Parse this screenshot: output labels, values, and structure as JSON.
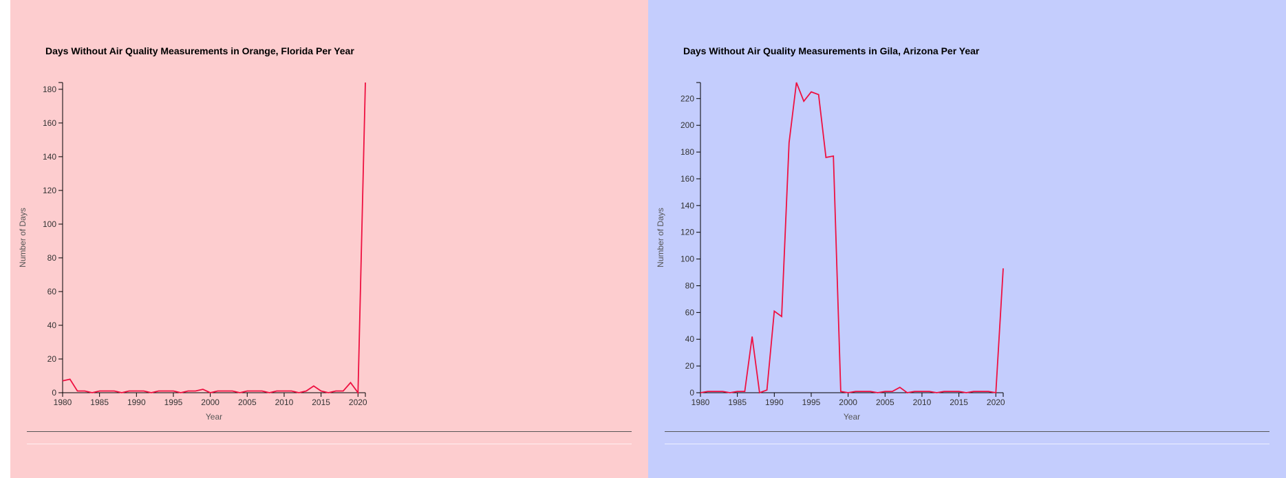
{
  "colors": {
    "left_bg": "#fdcdcf",
    "right_bg": "#c4cdfd",
    "line": "#ee1040",
    "axis": "#000000",
    "tick_text": "#333333",
    "label_text": "#555555"
  },
  "chart_data": [
    {
      "type": "line",
      "title": "Days Without Air Quality Measurements in Orange, Florida Per Year",
      "xlabel": "Year",
      "ylabel": "Number of Days",
      "xlim": [
        1980,
        2021
      ],
      "ylim": [
        0,
        184
      ],
      "xticks": [
        1980,
        1985,
        1990,
        1995,
        2000,
        2005,
        2010,
        2015,
        2020
      ],
      "yticks": [
        0,
        20,
        40,
        60,
        80,
        100,
        120,
        140,
        160,
        180
      ],
      "grid": false,
      "x": [
        1980,
        1981,
        1982,
        1983,
        1984,
        1985,
        1986,
        1987,
        1988,
        1989,
        1990,
        1991,
        1992,
        1993,
        1994,
        1995,
        1996,
        1997,
        1998,
        1999,
        2000,
        2001,
        2002,
        2003,
        2004,
        2005,
        2006,
        2007,
        2008,
        2009,
        2010,
        2011,
        2012,
        2013,
        2014,
        2015,
        2016,
        2017,
        2018,
        2019,
        2020,
        2021
      ],
      "y": [
        7,
        8,
        1,
        1,
        0,
        1,
        1,
        1,
        0,
        1,
        1,
        1,
        0,
        1,
        1,
        1,
        0,
        1,
        1,
        2,
        0,
        1,
        1,
        1,
        0,
        1,
        1,
        1,
        0,
        1,
        1,
        1,
        0,
        1,
        4,
        1,
        0,
        1,
        1,
        6,
        0,
        184
      ]
    },
    {
      "type": "line",
      "title": "Days Without Air Quality Measurements in Gila, Arizona Per Year",
      "xlabel": "Year",
      "ylabel": "Number of Days",
      "xlim": [
        1980,
        2021
      ],
      "ylim": [
        0,
        232
      ],
      "xticks": [
        1980,
        1985,
        1990,
        1995,
        2000,
        2005,
        2010,
        2015,
        2020
      ],
      "yticks": [
        0,
        20,
        40,
        60,
        80,
        100,
        120,
        140,
        160,
        180,
        200,
        220
      ],
      "grid": false,
      "x": [
        1980,
        1981,
        1982,
        1983,
        1984,
        1985,
        1986,
        1987,
        1988,
        1989,
        1990,
        1991,
        1992,
        1993,
        1994,
        1995,
        1996,
        1997,
        1998,
        1999,
        2000,
        2001,
        2002,
        2003,
        2004,
        2005,
        2006,
        2007,
        2008,
        2009,
        2010,
        2011,
        2012,
        2013,
        2014,
        2015,
        2016,
        2017,
        2018,
        2019,
        2020,
        2021
      ],
      "y": [
        0,
        1,
        1,
        1,
        0,
        1,
        1,
        42,
        0,
        2,
        61,
        57,
        187,
        232,
        218,
        225,
        223,
        176,
        177,
        1,
        0,
        1,
        1,
        1,
        0,
        1,
        1,
        4,
        0,
        1,
        1,
        1,
        0,
        1,
        1,
        1,
        0,
        1,
        1,
        1,
        0,
        93
      ]
    }
  ]
}
